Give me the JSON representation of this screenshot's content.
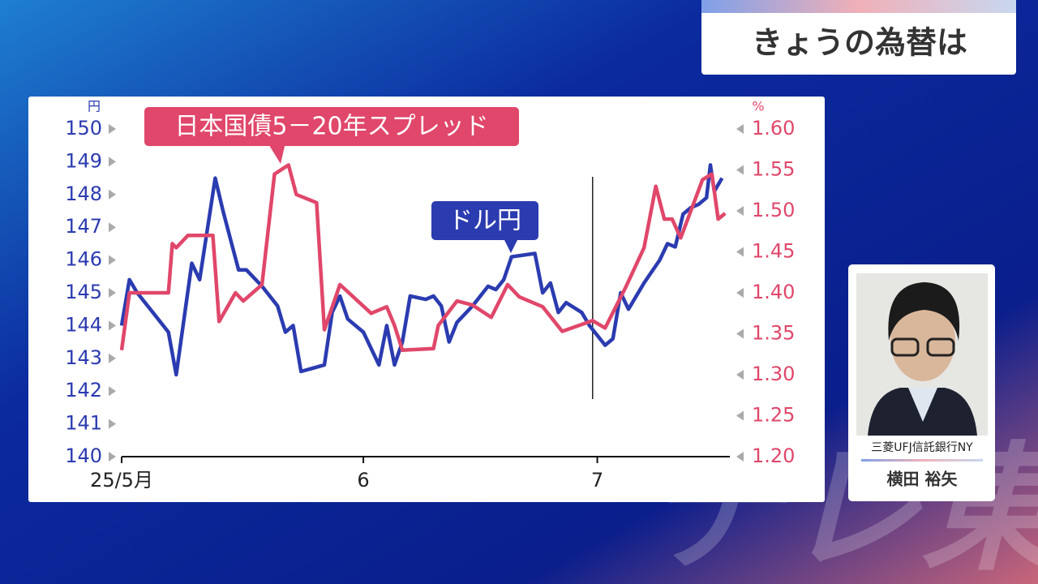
{
  "header": {
    "title": "きょうの為替は"
  },
  "guest": {
    "company": "三菱UFJ信託銀行NY",
    "name": "横田 裕矢"
  },
  "watermark": "テレ東",
  "chart_data": {
    "type": "line",
    "y_unit": "円",
    "y2_unit": "%",
    "xlim": [
      0,
      78
    ],
    "xticks": [
      {
        "value": 0,
        "label": "25/5月"
      },
      {
        "value": 31,
        "label": "6"
      },
      {
        "value": 61,
        "label": "7"
      }
    ],
    "ylim": [
      140,
      150
    ],
    "yticks": [
      140,
      141,
      142,
      143,
      144,
      145,
      146,
      147,
      148,
      149,
      150
    ],
    "y2lim": [
      1.2,
      1.6
    ],
    "y2ticks": [
      {
        "value": 1.2,
        "label": "1.20"
      },
      1.25,
      {
        "value": 1.3,
        "label": "1.30"
      },
      1.35,
      {
        "value": 1.4,
        "label": "1.40"
      },
      1.45,
      {
        "value": 1.5,
        "label": "1.50"
      },
      1.55,
      {
        "value": 1.6,
        "label": "1.60"
      }
    ],
    "vline": 60.4,
    "series": [
      {
        "name": "ドル円",
        "color": "#2b3bb0",
        "x": [
          0,
          1,
          2,
          4,
          6,
          7,
          9,
          10,
          12,
          13,
          14,
          15,
          16,
          18,
          20,
          21,
          22,
          23,
          26,
          27,
          28,
          29,
          31,
          33,
          34,
          35,
          36,
          37,
          39,
          40,
          41,
          42,
          43,
          45,
          47,
          48,
          49,
          50,
          53,
          54,
          55,
          56,
          57,
          59,
          60,
          62,
          63,
          64,
          65,
          67,
          69,
          70,
          71,
          72,
          73,
          74,
          75,
          75.5,
          76,
          77
        ],
        "values": [
          144.0,
          145.4,
          145.0,
          144.4,
          143.8,
          142.5,
          145.9,
          145.4,
          148.5,
          147.5,
          146.6,
          145.7,
          145.7,
          145.2,
          144.6,
          143.8,
          144.0,
          142.6,
          142.8,
          144.4,
          144.9,
          144.2,
          143.8,
          142.8,
          144.0,
          142.8,
          143.5,
          144.9,
          144.8,
          144.9,
          144.6,
          143.5,
          144.1,
          144.6,
          145.2,
          145.1,
          145.4,
          146.1,
          146.2,
          145.0,
          145.3,
          144.4,
          144.7,
          144.4,
          144.0,
          143.4,
          143.6,
          145.0,
          144.5,
          145.3,
          146.0,
          146.5,
          146.4,
          147.4,
          147.6,
          147.7,
          147.9,
          148.9,
          148.1,
          148.5
        ]
      },
      {
        "name": "日本国債5－20年スプレッド",
        "color": "#e0476a",
        "axis": "y2",
        "x": [
          0,
          1,
          6,
          6.5,
          7,
          8.5,
          11.7,
          12.5,
          14.6,
          15.6,
          18,
          19.6,
          21.4,
          22.4,
          25,
          26,
          28,
          32,
          34,
          35,
          36,
          40,
          40.6,
          43,
          45,
          47.4,
          49.5,
          51,
          54,
          56.5,
          60.4,
          62,
          64.6,
          67,
          68.5,
          69.6,
          70.6,
          71.7,
          74.5,
          75.7,
          76.5,
          77.4
        ],
        "values": [
          1.33,
          1.4,
          1.4,
          1.46,
          1.455,
          1.47,
          1.47,
          1.365,
          1.4,
          1.39,
          1.41,
          1.545,
          1.556,
          1.52,
          1.51,
          1.355,
          1.41,
          1.375,
          1.383,
          1.36,
          1.33,
          1.332,
          1.36,
          1.39,
          1.385,
          1.37,
          1.41,
          1.395,
          1.383,
          1.353,
          1.366,
          1.357,
          1.406,
          1.455,
          1.53,
          1.49,
          1.49,
          1.467,
          1.538,
          1.545,
          1.49,
          1.497
        ]
      }
    ]
  }
}
